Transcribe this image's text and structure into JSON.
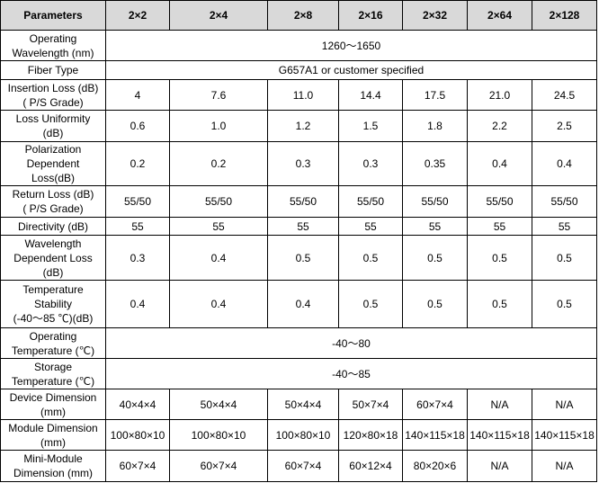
{
  "table": {
    "header": [
      "Parameters",
      "2×2",
      "2×4",
      "2×8",
      "2×16",
      "2×32",
      "2×64",
      "2×128"
    ],
    "rows": [
      {
        "label": [
          "Operating",
          "Wavelength (nm)"
        ],
        "span": "1260～1650"
      },
      {
        "label": [
          "Fiber Type"
        ],
        "span": "G657A1 or customer specified"
      },
      {
        "label": [
          "Insertion Loss (dB)",
          "( P/S Grade)"
        ],
        "cells": [
          "4",
          "7.6",
          "11.0",
          "14.4",
          "17.5",
          "21.0",
          "24.5"
        ]
      },
      {
        "label": [
          "Loss Uniformity",
          "(dB)"
        ],
        "cells": [
          "0.6",
          "1.0",
          "1.2",
          "1.5",
          "1.8",
          "2.2",
          "2.5"
        ]
      },
      {
        "label": [
          "Polarization",
          "Dependent",
          "Loss(dB)"
        ],
        "cells": [
          "0.2",
          "0.2",
          "0.3",
          "0.3",
          "0.35",
          "0.4",
          "0.4"
        ]
      },
      {
        "label": [
          "Return Loss (dB)",
          "( P/S Grade)"
        ],
        "cells": [
          "55/50",
          "55/50",
          "55/50",
          "55/50",
          "55/50",
          "55/50",
          "55/50"
        ]
      },
      {
        "label": [
          "Directivity (dB)"
        ],
        "cells": [
          "55",
          "55",
          "55",
          "55",
          "55",
          "55",
          "55"
        ]
      },
      {
        "label": [
          "Wavelength",
          "Dependent Loss",
          "(dB)"
        ],
        "cells": [
          "0.3",
          "0.4",
          "0.5",
          "0.5",
          "0.5",
          "0.5",
          "0.5"
        ]
      },
      {
        "label": [
          "Temperature",
          "Stability",
          "(-40～85 ℃)(dB)"
        ],
        "cells": [
          "0.4",
          "0.4",
          "0.4",
          "0.5",
          "0.5",
          "0.5",
          "0.5"
        ]
      },
      {
        "label": [
          "Operating",
          "Temperature (℃)"
        ],
        "span": "-40～80"
      },
      {
        "label": [
          "Storage",
          "Temperature (℃)"
        ],
        "span": "-40～85"
      },
      {
        "label": [
          "Device Dimension",
          "(mm)"
        ],
        "cells": [
          "40×4×4",
          "50×4×4",
          "50×4×4",
          "50×7×4",
          "60×7×4",
          "N/A",
          "N/A"
        ]
      },
      {
        "label": [
          "Module Dimension",
          "(mm)"
        ],
        "cells": [
          "100×80×10",
          "100×80×10",
          "100×80×10",
          "120×80×18",
          "140×115×18",
          "140×115×18",
          "140×115×18"
        ]
      },
      {
        "label": [
          "Mini-Module",
          "Dimension (mm)"
        ],
        "cells": [
          "60×7×4",
          "60×7×4",
          "60×7×4",
          "60×12×4",
          "80×20×6",
          "N/A",
          "N/A"
        ]
      }
    ]
  }
}
